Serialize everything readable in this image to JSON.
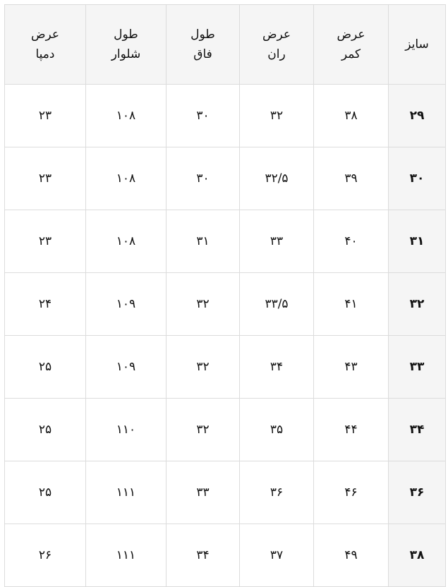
{
  "table": {
    "headers": [
      {
        "line1": "سایز",
        "line2": ""
      },
      {
        "line1": "عرض",
        "line2": "کمر"
      },
      {
        "line1": "عرض",
        "line2": "ران"
      },
      {
        "line1": "طول",
        "line2": "فاق"
      },
      {
        "line1": "طول",
        "line2": "شلوار"
      },
      {
        "line1": "عرض",
        "line2": "دمپا"
      }
    ],
    "rows": [
      [
        "۲۹",
        "۳۸",
        "۳۲",
        "۳۰",
        "۱۰۸",
        "۲۳"
      ],
      [
        "۳۰",
        "۳۹",
        "۳۲/۵",
        "۳۰",
        "۱۰۸",
        "۲۳"
      ],
      [
        "۳۱",
        "۴۰",
        "۳۳",
        "۳۱",
        "۱۰۸",
        "۲۳"
      ],
      [
        "۳۲",
        "۴۱",
        "۳۳/۵",
        "۳۲",
        "۱۰۹",
        "۲۴"
      ],
      [
        "۳۳",
        "۴۳",
        "۳۴",
        "۳۲",
        "۱۰۹",
        "۲۵"
      ],
      [
        "۳۴",
        "۴۴",
        "۳۵",
        "۳۲",
        "۱۱۰",
        "۲۵"
      ],
      [
        "۳۶",
        "۴۶",
        "۳۶",
        "۳۳",
        "۱۱۱",
        "۲۵"
      ],
      [
        "۳۸",
        "۴۹",
        "۳۷",
        "۳۴",
        "۱۱۱",
        "۲۶"
      ]
    ]
  }
}
